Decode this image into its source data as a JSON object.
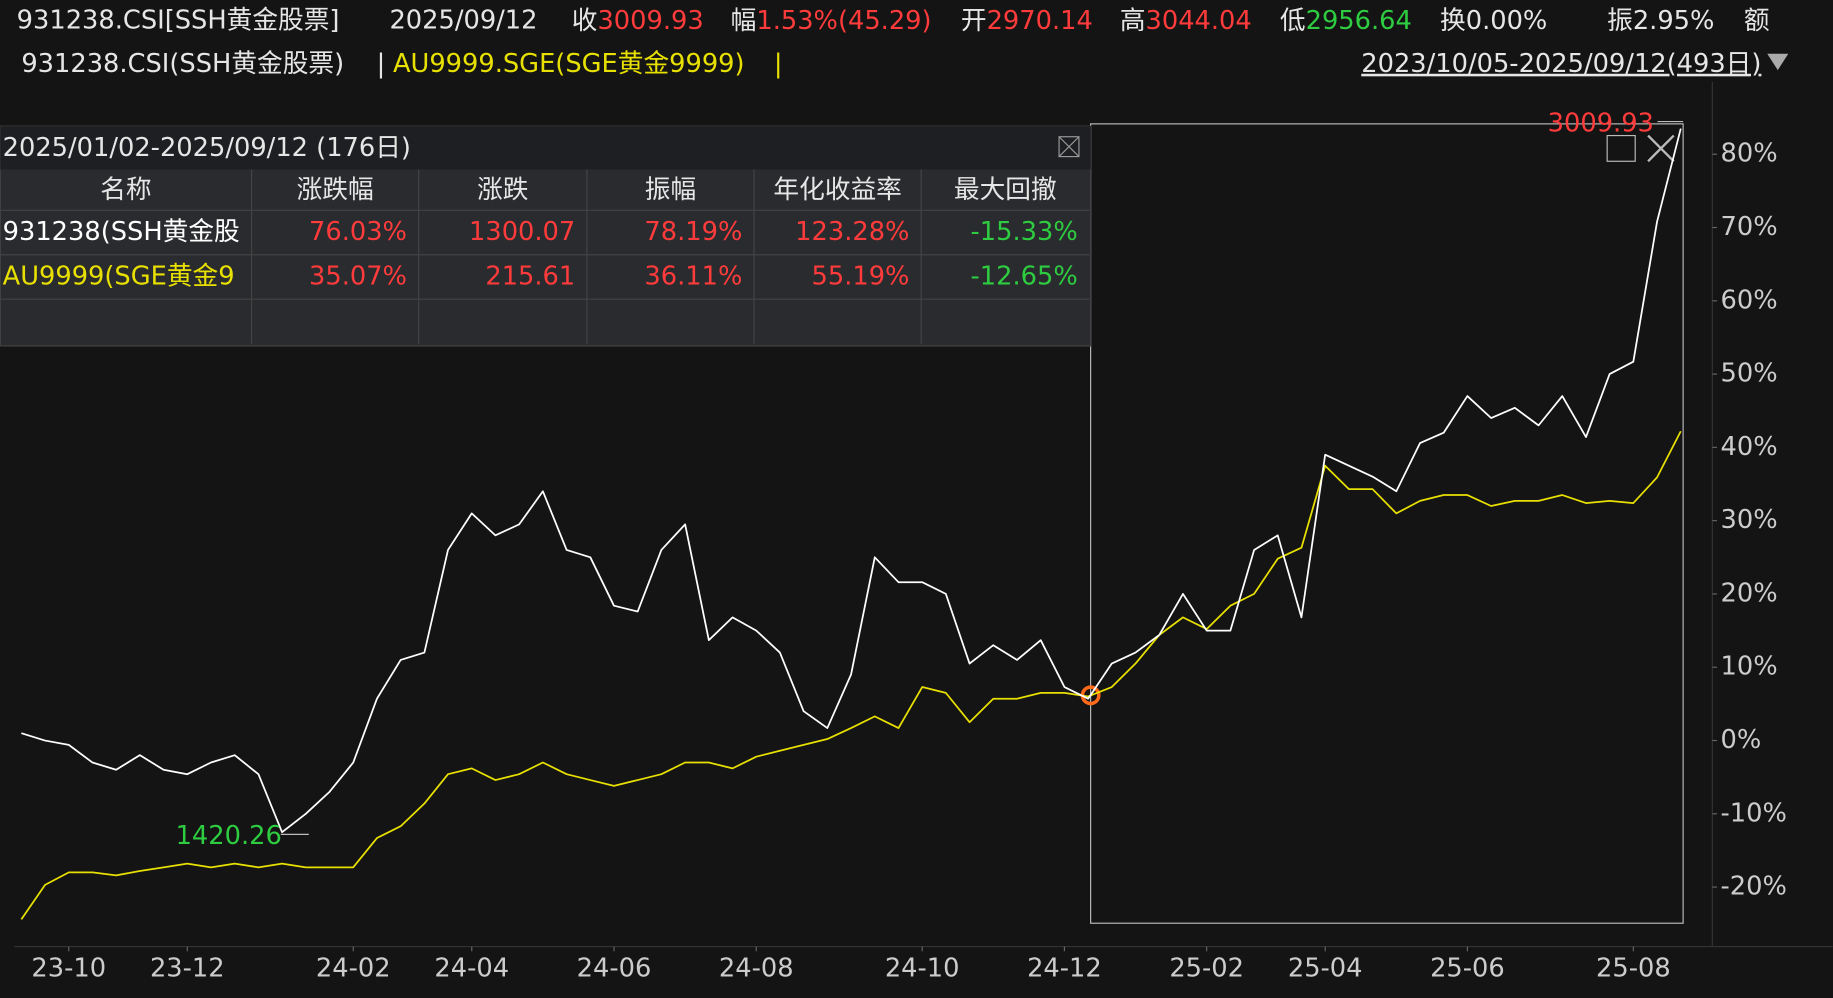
{
  "header": {
    "title": "931238.CSI[SSH黄金股票]",
    "date": "2025/09/12",
    "quotes": [
      {
        "label": "收",
        "value": "3009.93",
        "color": "#ff3b3b"
      },
      {
        "label": "幅",
        "value": "1.53%(45.29)",
        "color": "#ff3b3b"
      },
      {
        "label": "开",
        "value": "2970.14",
        "color": "#ff3b3b"
      },
      {
        "label": "高",
        "value": "3044.04",
        "color": "#ff3b3b"
      },
      {
        "label": "低",
        "value": "2956.64",
        "color": "#2ecc40"
      },
      {
        "label": "换",
        "value": "0.00%",
        "color": "#e6e6e6"
      },
      {
        "label": "振",
        "value": "2.95%",
        "color": "#e6e6e6"
      },
      {
        "label": "额",
        "value": "",
        "color": "#e6e6e6"
      }
    ],
    "range": "2023/10/05-2025/09/12(493日)"
  },
  "table": {
    "title": "2025/01/02-2025/09/12 (176日)",
    "columns": [
      "名称",
      "涨跌幅",
      "涨跌",
      "振幅",
      "年化收益率",
      "最大回撤"
    ],
    "rows": [
      [
        "931238(SSH黄金股",
        "76.03%",
        "1300.07",
        "78.19%",
        "123.28%",
        "-15.33%"
      ],
      [
        "AU9999(SGE黄金9",
        "35.07%",
        "215.61",
        "36.11%",
        "55.19%",
        "-12.65%"
      ]
    ]
  },
  "chart_data": {
    "type": "line",
    "categories": [
      null,
      null,
      "23-10",
      null,
      null,
      null,
      null,
      "23-12",
      null,
      null,
      null,
      null,
      null,
      null,
      "24-02",
      null,
      null,
      null,
      null,
      "24-04",
      null,
      null,
      null,
      null,
      null,
      "24-06",
      null,
      null,
      null,
      null,
      null,
      "24-08",
      null,
      null,
      null,
      null,
      null,
      null,
      "24-10",
      null,
      null,
      null,
      null,
      null,
      "24-12",
      null,
      null,
      null,
      null,
      null,
      "25-02",
      null,
      null,
      null,
      null,
      "25-04",
      null,
      null,
      null,
      null,
      null,
      "25-06",
      null,
      null,
      null,
      null,
      null,
      null,
      "25-08",
      null,
      null
    ],
    "series": [
      {
        "name": "931238.CSI(SSH黄金股票)",
        "color": "#ffffff",
        "values": [
          1,
          0,
          -0.6,
          -3,
          -4,
          -2,
          -4,
          -4.6,
          -3,
          -2,
          -4.6,
          -12.5,
          -10,
          -7,
          -3,
          5.7,
          11,
          12,
          26,
          31,
          28,
          29.5,
          34,
          26,
          25,
          18.4,
          17.6,
          26,
          29.5,
          13.7,
          16.8,
          15,
          12,
          4,
          1.7,
          9,
          25,
          21.6,
          21.6,
          20,
          10.5,
          13,
          11,
          13.7,
          7.3,
          5.7,
          10.5,
          12,
          14.4,
          20,
          15,
          15,
          26,
          28,
          16.8,
          39,
          37.5,
          36,
          34,
          40.6,
          42,
          47,
          44,
          45.4,
          43,
          47,
          41.4,
          50,
          51.7,
          70.8,
          83.5
        ]
      },
      {
        "name": "AU9999.SGE(SGE黄金9999)",
        "color": "#e8e000",
        "values": [
          -24.4,
          -19.7,
          -18,
          -18,
          -18.4,
          -17.8,
          -17.3,
          -16.8,
          -17.3,
          -16.8,
          -17.3,
          -16.8,
          -17.3,
          -17.3,
          -17.3,
          -13.3,
          -11.7,
          -8.6,
          -4.6,
          -3.8,
          -5.4,
          -4.6,
          -3,
          -4.6,
          -5.4,
          -6.2,
          -5.4,
          -4.6,
          -3,
          -3,
          -3.8,
          -2.2,
          -1.4,
          -0.6,
          0.2,
          1.7,
          3.3,
          1.7,
          7.3,
          6.5,
          2.5,
          5.7,
          5.7,
          6.5,
          6.5,
          6,
          7.3,
          10.5,
          14.4,
          16.8,
          15.2,
          18.4,
          20,
          24.8,
          26.3,
          37.5,
          34.3,
          34.3,
          31,
          32.7,
          33.5,
          33.5,
          32,
          32.7,
          32.7,
          33.5,
          32.4,
          32.7,
          32.4,
          35.9,
          42.2
        ]
      }
    ],
    "ylim": [
      -27.8,
      85.1
    ],
    "yticks": [
      {
        "value": -20,
        "label": "-20%"
      },
      {
        "value": -10,
        "label": "-10%"
      },
      {
        "value": 0,
        "label": "0%"
      },
      {
        "value": 10,
        "label": "10%"
      },
      {
        "value": 20,
        "label": "20%"
      },
      {
        "value": 30,
        "label": "30%"
      },
      {
        "value": 40,
        "label": "40%"
      },
      {
        "value": 50,
        "label": "50%"
      },
      {
        "value": 60,
        "label": "60%"
      },
      {
        "value": 70,
        "label": "70%"
      },
      {
        "value": 80,
        "label": "80%"
      }
    ],
    "annotations": [
      {
        "text": "3009.93",
        "color": "#ff3b3b"
      },
      {
        "text": "1420.26",
        "color": "#2ecc40"
      }
    ]
  }
}
